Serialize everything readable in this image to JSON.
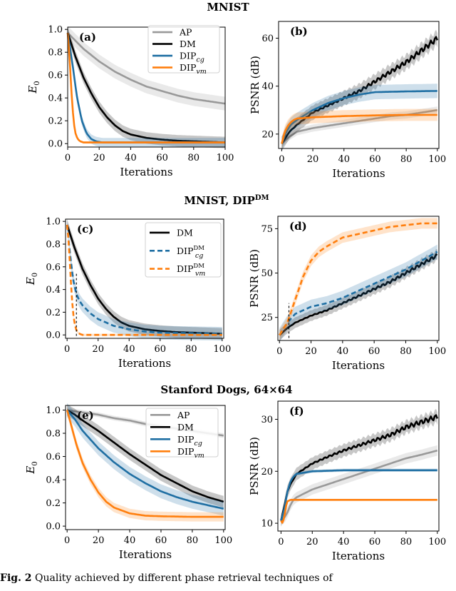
{
  "row_titles": [
    "MNIST",
    "MNIST, DIP",
    "Stanford Dogs, 64×64"
  ],
  "row_title_superscript": "DM",
  "caption": {
    "label": "Fig. 2",
    "text": "Quality achieved by different phase retrieval techniques of"
  },
  "colors": {
    "AP": "#999999",
    "DM": "#000000",
    "DIP_cg": "#1f6fa3",
    "DIP_vm": "#ff7f0e"
  },
  "chart_data": [
    {
      "id": "a",
      "type": "line",
      "panel_label": "(a)",
      "xlabel": "Iterations",
      "ylabel": "E0",
      "xlim": [
        0,
        100
      ],
      "ylim": [
        -0.03,
        1.02
      ],
      "xticks": [
        0,
        20,
        40,
        60,
        80,
        100
      ],
      "yticks": [
        0.0,
        0.2,
        0.4,
        0.6,
        0.8,
        1.0
      ],
      "ytick_labels": [
        "0.0",
        "0.2",
        "0.4",
        "0.6",
        "0.8",
        "1.0"
      ],
      "legend": {
        "position": "top-right",
        "entries": [
          "AP",
          "DM",
          "DIP_cg",
          "DIP_vm"
        ]
      },
      "series": [
        {
          "name": "AP",
          "color": "#999999",
          "style": "solid",
          "x": [
            0,
            5,
            10,
            20,
            30,
            40,
            50,
            60,
            70,
            80,
            90,
            100
          ],
          "y": [
            0.97,
            0.9,
            0.83,
            0.72,
            0.63,
            0.56,
            0.5,
            0.46,
            0.42,
            0.39,
            0.37,
            0.35
          ],
          "band": 0.06
        },
        {
          "name": "DM",
          "color": "#000000",
          "style": "solid",
          "x": [
            0,
            5,
            10,
            15,
            20,
            25,
            30,
            35,
            40,
            50,
            60,
            70,
            80,
            90,
            100
          ],
          "y": [
            0.97,
            0.76,
            0.58,
            0.44,
            0.32,
            0.23,
            0.16,
            0.11,
            0.08,
            0.05,
            0.035,
            0.025,
            0.02,
            0.015,
            0.01
          ],
          "band": 0.05
        },
        {
          "name": "DIP_cg",
          "color": "#1f6fa3",
          "style": "solid",
          "x": [
            0,
            3,
            6,
            9,
            12,
            15,
            18,
            22,
            26,
            30,
            40,
            60,
            80,
            100
          ],
          "y": [
            0.97,
            0.7,
            0.4,
            0.2,
            0.09,
            0.04,
            0.02,
            0.01,
            0.01,
            0.01,
            0.01,
            0.01,
            0.01,
            0.01
          ],
          "band": 0.04
        },
        {
          "name": "DIP_vm",
          "color": "#ff7f0e",
          "style": "solid",
          "x": [
            0,
            1,
            2,
            3,
            4,
            5,
            6,
            7,
            8,
            10,
            15,
            20,
            40,
            60,
            80,
            100
          ],
          "y": [
            0.97,
            0.8,
            0.55,
            0.32,
            0.17,
            0.09,
            0.05,
            0.03,
            0.02,
            0.01,
            0.01,
            0.01,
            0.01,
            0.01,
            0.01,
            0.01
          ],
          "band": 0.01
        }
      ]
    },
    {
      "id": "b",
      "type": "line",
      "panel_label": "(b)",
      "xlabel": "Iterations",
      "ylabel": "PSNR (dB)",
      "xlim": [
        -2,
        101
      ],
      "ylim": [
        14,
        67
      ],
      "xticks": [
        0,
        20,
        40,
        60,
        80,
        100
      ],
      "yticks": [
        20,
        40,
        60
      ],
      "ytick_labels": [
        "20",
        "40",
        "60"
      ],
      "series": [
        {
          "name": "AP",
          "color": "#999999",
          "style": "solid",
          "x": [
            0,
            5,
            10,
            20,
            30,
            40,
            50,
            60,
            70,
            80,
            90,
            100
          ],
          "y": [
            16,
            19,
            21,
            22.5,
            23.5,
            24.5,
            25.5,
            26.5,
            27.5,
            28,
            29,
            30
          ],
          "band": 1.5
        },
        {
          "name": "DM",
          "color": "#000000",
          "style": "solid",
          "x": [
            0,
            5,
            10,
            20,
            30,
            40,
            50,
            60,
            70,
            80,
            90,
            100
          ],
          "y": [
            16,
            21,
            24,
            29,
            32,
            35,
            38,
            42,
            46,
            50,
            55,
            60
          ],
          "band": 3,
          "jitter": 1.2
        },
        {
          "name": "DIP_cg",
          "color": "#1f6fa3",
          "style": "solid",
          "x": [
            0,
            3,
            6,
            10,
            15,
            20,
            30,
            40,
            50,
            60,
            80,
            100
          ],
          "y": [
            16,
            21,
            24,
            26,
            28,
            30,
            33,
            35,
            36.5,
            37.5,
            37.8,
            38
          ],
          "band": 3
        },
        {
          "name": "DIP_vm",
          "color": "#ff7f0e",
          "style": "solid",
          "x": [
            0,
            2,
            4,
            6,
            8,
            10,
            20,
            40,
            60,
            80,
            100
          ],
          "y": [
            16,
            21,
            23.5,
            25,
            26,
            26.5,
            27,
            27.5,
            27.8,
            28,
            28
          ],
          "band": 2.5
        }
      ]
    },
    {
      "id": "c",
      "type": "line",
      "panel_label": "(c)",
      "xlabel": "Iterations",
      "ylabel": "E0",
      "xlim": [
        -1,
        101
      ],
      "ylim": [
        -0.03,
        1.02
      ],
      "xticks": [
        0,
        20,
        40,
        60,
        80,
        100
      ],
      "yticks": [
        0.0,
        0.2,
        0.4,
        0.6,
        0.8,
        1.0
      ],
      "ytick_labels": [
        "0.0",
        "0.2",
        "0.4",
        "0.6",
        "0.8",
        "1.0"
      ],
      "legend": {
        "position": "top-right",
        "entries": [
          "DM",
          "DIP_cg^DM",
          "DIP_vm^DM"
        ]
      },
      "vline": 6,
      "series": [
        {
          "name": "DM",
          "color": "#000000",
          "style": "solid",
          "x": [
            0,
            5,
            10,
            15,
            20,
            25,
            30,
            35,
            40,
            50,
            60,
            70,
            80,
            90,
            100
          ],
          "y": [
            0.97,
            0.76,
            0.58,
            0.44,
            0.32,
            0.23,
            0.16,
            0.11,
            0.08,
            0.05,
            0.035,
            0.025,
            0.02,
            0.015,
            0.01
          ],
          "band": 0.05
        },
        {
          "name": "DIP_cg^DM",
          "color": "#1f6fa3",
          "style": "dashed",
          "x": [
            0,
            2,
            4,
            6,
            8,
            10,
            15,
            20,
            30,
            40,
            50,
            60,
            80,
            100
          ],
          "y": [
            0.97,
            0.7,
            0.48,
            0.36,
            0.3,
            0.26,
            0.19,
            0.14,
            0.08,
            0.05,
            0.03,
            0.02,
            0.015,
            0.01
          ],
          "band": 0.06
        },
        {
          "name": "DIP_vm^DM",
          "color": "#ff7f0e",
          "style": "dashed",
          "x": [
            0,
            1,
            2,
            3,
            4,
            5,
            6,
            7,
            8,
            10,
            15,
            20,
            40,
            60,
            80,
            100
          ],
          "y": [
            0.97,
            0.82,
            0.58,
            0.34,
            0.18,
            0.09,
            0.04,
            0.02,
            0.01,
            0.0,
            0.0,
            0.0,
            0.0,
            0.0,
            0.0,
            0.0
          ],
          "band": 0.01
        }
      ]
    },
    {
      "id": "d",
      "type": "line",
      "panel_label": "(d)",
      "xlabel": "Iterations",
      "ylabel": "PSNR (dB)",
      "xlim": [
        -1,
        101
      ],
      "ylim": [
        12,
        82
      ],
      "xticks": [
        0,
        20,
        40,
        60,
        80,
        100
      ],
      "yticks": [
        25,
        50,
        75
      ],
      "ytick_labels": [
        "25",
        "50",
        "75"
      ],
      "vline": 6,
      "series": [
        {
          "name": "DM",
          "color": "#000000",
          "style": "solid",
          "x": [
            0,
            5,
            10,
            20,
            30,
            40,
            50,
            60,
            70,
            80,
            90,
            100
          ],
          "y": [
            15,
            19,
            22,
            26,
            29,
            33,
            37,
            41,
            45,
            50,
            55,
            60
          ],
          "band": 3,
          "jitter": 1.0
        },
        {
          "name": "DIP_cg^DM",
          "color": "#1f6fa3",
          "style": "dashed",
          "x": [
            0,
            5,
            10,
            20,
            30,
            40,
            50,
            60,
            70,
            80,
            90,
            100
          ],
          "y": [
            15,
            22,
            27,
            31,
            33,
            36,
            40,
            44,
            48,
            52,
            57,
            62
          ],
          "band": 4
        },
        {
          "name": "DIP_vm^DM",
          "color": "#ff7f0e",
          "style": "dashed",
          "x": [
            0,
            5,
            10,
            15,
            20,
            25,
            30,
            40,
            50,
            60,
            70,
            80,
            90,
            100
          ],
          "y": [
            15,
            22,
            35,
            48,
            57,
            62,
            65,
            70,
            72,
            74,
            76,
            77,
            78,
            78
          ],
          "band": 3
        }
      ]
    },
    {
      "id": "e",
      "type": "line",
      "panel_label": "(e)",
      "xlabel": "Iterations",
      "ylabel": "E0",
      "xlim": [
        -1,
        101
      ],
      "ylim": [
        -0.03,
        1.04
      ],
      "xticks": [
        0,
        20,
        40,
        60,
        80,
        100
      ],
      "yticks": [
        0.0,
        0.2,
        0.4,
        0.6,
        0.8,
        1.0
      ],
      "ytick_labels": [
        "0.0",
        "0.2",
        "0.4",
        "0.6",
        "0.8",
        "1.0"
      ],
      "legend": {
        "position": "top-right",
        "entries": [
          "AP",
          "DM",
          "DIP_cg",
          "DIP_vm"
        ]
      },
      "series": [
        {
          "name": "AP",
          "color": "#999999",
          "style": "solid",
          "x": [
            0,
            10,
            20,
            30,
            40,
            50,
            60,
            70,
            80,
            90,
            100
          ],
          "y": [
            1.0,
            0.98,
            0.96,
            0.93,
            0.91,
            0.88,
            0.86,
            0.84,
            0.82,
            0.8,
            0.78
          ],
          "band": 0.02
        },
        {
          "name": "DM",
          "color": "#000000",
          "style": "solid",
          "x": [
            0,
            5,
            10,
            20,
            30,
            40,
            50,
            60,
            70,
            80,
            90,
            100
          ],
          "y": [
            1.0,
            0.96,
            0.91,
            0.82,
            0.72,
            0.62,
            0.53,
            0.44,
            0.37,
            0.3,
            0.25,
            0.21
          ],
          "band": 0.05
        },
        {
          "name": "DIP_cg",
          "color": "#1f6fa3",
          "style": "solid",
          "x": [
            0,
            5,
            10,
            20,
            30,
            40,
            50,
            60,
            70,
            80,
            90,
            100
          ],
          "y": [
            1.0,
            0.92,
            0.82,
            0.67,
            0.55,
            0.45,
            0.37,
            0.3,
            0.25,
            0.21,
            0.18,
            0.15
          ],
          "band": 0.06
        },
        {
          "name": "DIP_vm",
          "color": "#ff7f0e",
          "style": "solid",
          "x": [
            0,
            3,
            6,
            10,
            15,
            20,
            25,
            30,
            40,
            50,
            60,
            80,
            100
          ],
          "y": [
            1.0,
            0.85,
            0.7,
            0.54,
            0.4,
            0.29,
            0.21,
            0.16,
            0.11,
            0.09,
            0.085,
            0.08,
            0.08
          ],
          "band": 0.04
        }
      ]
    },
    {
      "id": "f",
      "type": "line",
      "panel_label": "(f)",
      "xlabel": "Iterations",
      "ylabel": "PSNR (dB)",
      "xlim": [
        -2,
        101
      ],
      "ylim": [
        8.5,
        33.5
      ],
      "xticks": [
        0,
        20,
        40,
        60,
        80,
        100
      ],
      "yticks": [
        10,
        20,
        30
      ],
      "ytick_labels": [
        "10",
        "20",
        "30"
      ],
      "series": [
        {
          "name": "AP",
          "color": "#999999",
          "style": "solid",
          "x": [
            0,
            2,
            4,
            6,
            8,
            10,
            20,
            30,
            40,
            50,
            60,
            70,
            80,
            90,
            100
          ],
          "y": [
            10.5,
            11,
            12,
            13.5,
            14.5,
            15,
            16.5,
            17.5,
            18.5,
            19.5,
            20.5,
            21.5,
            22.5,
            23.2,
            24
          ],
          "band": 1.0
        },
        {
          "name": "DM",
          "color": "#000000",
          "style": "solid",
          "x": [
            0,
            2,
            4,
            6,
            8,
            10,
            20,
            30,
            40,
            50,
            60,
            70,
            80,
            90,
            100
          ],
          "y": [
            10.5,
            13,
            16,
            17.5,
            18.5,
            19.5,
            21.5,
            22.8,
            24,
            25,
            26,
            27,
            28.5,
            29.5,
            30.5
          ],
          "band": 1.2,
          "jitter": 0.5
        },
        {
          "name": "DIP_cg",
          "color": "#1f6fa3",
          "style": "solid",
          "x": [
            0,
            2,
            4,
            6,
            8,
            10,
            20,
            40,
            60,
            80,
            100
          ],
          "y": [
            10.5,
            12.5,
            16,
            18,
            19,
            19.5,
            20,
            20.2,
            20.2,
            20.2,
            20.2
          ],
          "band": 0.3
        },
        {
          "name": "DIP_vm",
          "color": "#ff7f0e",
          "style": "solid",
          "x": [
            0,
            1,
            2,
            3,
            4,
            6,
            10,
            20,
            40,
            60,
            80,
            100
          ],
          "y": [
            10.5,
            10,
            11,
            13,
            14.2,
            14.5,
            14.5,
            14.5,
            14.5,
            14.5,
            14.5,
            14.5
          ],
          "band": 0.2
        }
      ]
    }
  ]
}
